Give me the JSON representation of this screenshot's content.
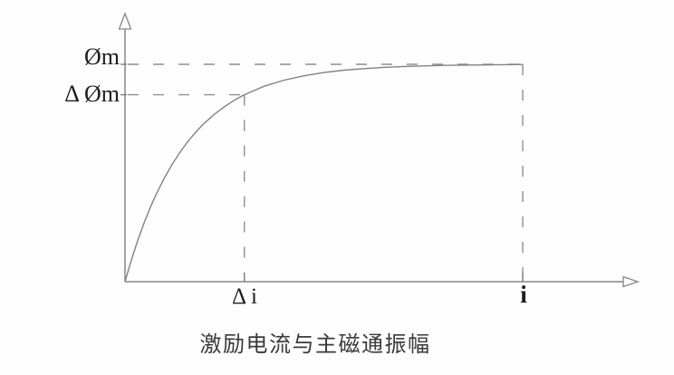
{
  "chart_data": {
    "type": "line",
    "title": "激励电流与主磁通振幅",
    "grid": false,
    "legend": null,
    "line_color": "#828282",
    "guide_color": "#8f8f8f",
    "text_color": "#1e1e1e",
    "axis_range": {
      "x_frac": [
        0,
        1.26
      ],
      "y_frac": [
        0,
        1.22
      ]
    },
    "x_ticks": [
      {
        "label": "Δ i",
        "x": 0.3
      },
      {
        "label": "i",
        "x": 1.0
      }
    ],
    "y_ticks": [
      {
        "label": "Δ Øm",
        "y": 0.86
      },
      {
        "label": "Øm",
        "y": 1.0
      }
    ],
    "guides": [
      {
        "x": 0.3,
        "y": 0.86
      },
      {
        "x": 1.0,
        "y": 1.0
      }
    ],
    "series": [
      {
        "name": "main-flux-saturation-curve",
        "points": [
          [
            0,
            0
          ],
          [
            0.005,
            0.032
          ],
          [
            0.01,
            0.063
          ],
          [
            0.02,
            0.123
          ],
          [
            0.03,
            0.179
          ],
          [
            0.04,
            0.231
          ],
          [
            0.05,
            0.28
          ],
          [
            0.065,
            0.347
          ],
          [
            0.08,
            0.408
          ],
          [
            0.1,
            0.481
          ],
          [
            0.12,
            0.544
          ],
          [
            0.14,
            0.6
          ],
          [
            0.16,
            0.649
          ],
          [
            0.18,
            0.692
          ],
          [
            0.2,
            0.73
          ],
          [
            0.225,
            0.771
          ],
          [
            0.25,
            0.805
          ],
          [
            0.275,
            0.835
          ],
          [
            0.3,
            0.86
          ],
          [
            0.35,
            0.899
          ],
          [
            0.4,
            0.927
          ],
          [
            0.45,
            0.947
          ],
          [
            0.5,
            0.962
          ],
          [
            0.55,
            0.973
          ],
          [
            0.6,
            0.98
          ],
          [
            0.65,
            0.986
          ],
          [
            0.7,
            0.99
          ],
          [
            0.8,
            0.995
          ],
          [
            0.9,
            0.997
          ],
          [
            1.0,
            0.999
          ]
        ]
      }
    ]
  }
}
